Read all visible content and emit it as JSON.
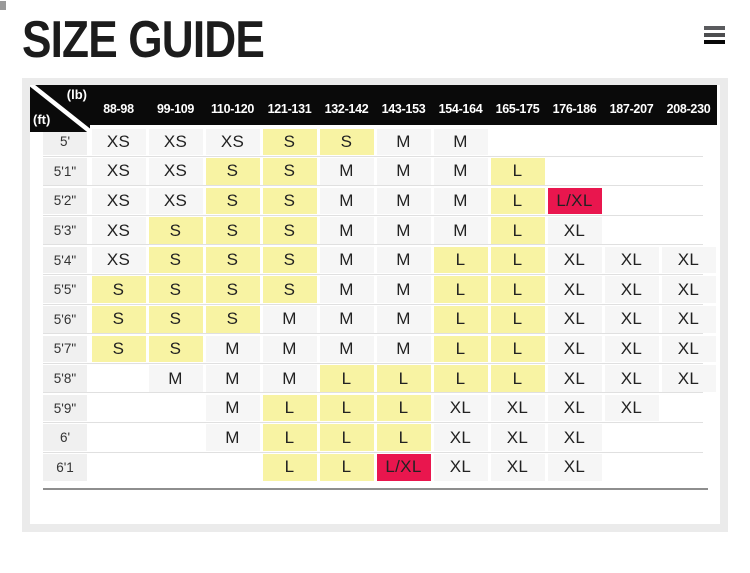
{
  "header": {
    "title": "SIZE GUIDE"
  },
  "menu": {
    "icon": "hamburger-menu-icon"
  },
  "colors": {
    "highlight_yellow": "#f8f3a3",
    "highlight_red": "#e9164e",
    "header_bg": "#0a0a0a",
    "cell_gray": "#f6f6f6",
    "label_gray": "#f0f0f0",
    "panel_frame_gray": "#ebebeb"
  },
  "size_table": {
    "corner": {
      "col_unit": "(lb)",
      "row_unit": "(ft)"
    },
    "columns": [
      "88-98",
      "99-109",
      "110-120",
      "121-131",
      "132-142",
      "143-153",
      "154-164",
      "165-175",
      "176-186",
      "187-207",
      "208-230"
    ],
    "rows": [
      {
        "label": "5'",
        "cells": [
          {
            "v": "XS"
          },
          {
            "v": "XS"
          },
          {
            "v": "XS"
          },
          {
            "v": "S",
            "h": "y"
          },
          {
            "v": "S",
            "h": "y"
          },
          {
            "v": "M"
          },
          {
            "v": "M"
          },
          {
            "v": ""
          },
          {
            "v": ""
          },
          {
            "v": ""
          },
          {
            "v": ""
          }
        ]
      },
      {
        "label": "5'1\"",
        "cells": [
          {
            "v": "XS"
          },
          {
            "v": "XS"
          },
          {
            "v": "S",
            "h": "y"
          },
          {
            "v": "S",
            "h": "y"
          },
          {
            "v": "M"
          },
          {
            "v": "M"
          },
          {
            "v": "M"
          },
          {
            "v": "L",
            "h": "y"
          },
          {
            "v": ""
          },
          {
            "v": ""
          },
          {
            "v": ""
          }
        ]
      },
      {
        "label": "5'2\"",
        "cells": [
          {
            "v": "XS"
          },
          {
            "v": "XS"
          },
          {
            "v": "S",
            "h": "y"
          },
          {
            "v": "S",
            "h": "y"
          },
          {
            "v": "M"
          },
          {
            "v": "M"
          },
          {
            "v": "M"
          },
          {
            "v": "L",
            "h": "y"
          },
          {
            "v": "L/XL",
            "h": "r"
          },
          {
            "v": ""
          },
          {
            "v": ""
          }
        ]
      },
      {
        "label": "5'3\"",
        "cells": [
          {
            "v": "XS"
          },
          {
            "v": "S",
            "h": "y"
          },
          {
            "v": "S",
            "h": "y"
          },
          {
            "v": "S",
            "h": "y"
          },
          {
            "v": "M"
          },
          {
            "v": "M"
          },
          {
            "v": "M"
          },
          {
            "v": "L",
            "h": "y"
          },
          {
            "v": "XL"
          },
          {
            "v": ""
          },
          {
            "v": ""
          }
        ]
      },
      {
        "label": "5'4\"",
        "cells": [
          {
            "v": "XS"
          },
          {
            "v": "S",
            "h": "y"
          },
          {
            "v": "S",
            "h": "y"
          },
          {
            "v": "S",
            "h": "y"
          },
          {
            "v": "M"
          },
          {
            "v": "M"
          },
          {
            "v": "L",
            "h": "y"
          },
          {
            "v": "L",
            "h": "y"
          },
          {
            "v": "XL"
          },
          {
            "v": "XL"
          },
          {
            "v": "XL"
          }
        ]
      },
      {
        "label": "5'5\"",
        "cells": [
          {
            "v": "S",
            "h": "y"
          },
          {
            "v": "S",
            "h": "y"
          },
          {
            "v": "S",
            "h": "y"
          },
          {
            "v": "S",
            "h": "y"
          },
          {
            "v": "M"
          },
          {
            "v": "M"
          },
          {
            "v": "L",
            "h": "y"
          },
          {
            "v": "L",
            "h": "y"
          },
          {
            "v": "XL"
          },
          {
            "v": "XL"
          },
          {
            "v": "XL"
          }
        ]
      },
      {
        "label": "5'6\"",
        "cells": [
          {
            "v": "S",
            "h": "y"
          },
          {
            "v": "S",
            "h": "y"
          },
          {
            "v": "S",
            "h": "y"
          },
          {
            "v": "M"
          },
          {
            "v": "M"
          },
          {
            "v": "M"
          },
          {
            "v": "L",
            "h": "y"
          },
          {
            "v": "L",
            "h": "y"
          },
          {
            "v": "XL"
          },
          {
            "v": "XL"
          },
          {
            "v": "XL"
          }
        ]
      },
      {
        "label": "5'7\"",
        "cells": [
          {
            "v": "S",
            "h": "y"
          },
          {
            "v": "S",
            "h": "y"
          },
          {
            "v": "M"
          },
          {
            "v": "M"
          },
          {
            "v": "M"
          },
          {
            "v": "M"
          },
          {
            "v": "L",
            "h": "y"
          },
          {
            "v": "L",
            "h": "y"
          },
          {
            "v": "XL"
          },
          {
            "v": "XL"
          },
          {
            "v": "XL"
          }
        ]
      },
      {
        "label": "5'8\"",
        "cells": [
          {
            "v": ""
          },
          {
            "v": "M"
          },
          {
            "v": "M"
          },
          {
            "v": "M"
          },
          {
            "v": "L",
            "h": "y"
          },
          {
            "v": "L",
            "h": "y"
          },
          {
            "v": "L",
            "h": "y"
          },
          {
            "v": "L",
            "h": "y"
          },
          {
            "v": "XL"
          },
          {
            "v": "XL"
          },
          {
            "v": "XL"
          }
        ]
      },
      {
        "label": "5'9\"",
        "cells": [
          {
            "v": ""
          },
          {
            "v": ""
          },
          {
            "v": "M"
          },
          {
            "v": "L",
            "h": "y"
          },
          {
            "v": "L",
            "h": "y"
          },
          {
            "v": "L",
            "h": "y"
          },
          {
            "v": "XL"
          },
          {
            "v": "XL"
          },
          {
            "v": "XL"
          },
          {
            "v": "XL"
          },
          {
            "v": ""
          }
        ]
      },
      {
        "label": "6'",
        "cells": [
          {
            "v": ""
          },
          {
            "v": ""
          },
          {
            "v": "M"
          },
          {
            "v": "L",
            "h": "y"
          },
          {
            "v": "L",
            "h": "y"
          },
          {
            "v": "L",
            "h": "y"
          },
          {
            "v": "XL"
          },
          {
            "v": "XL"
          },
          {
            "v": "XL"
          },
          {
            "v": ""
          },
          {
            "v": ""
          }
        ]
      },
      {
        "label": "6'1",
        "cells": [
          {
            "v": ""
          },
          {
            "v": ""
          },
          {
            "v": ""
          },
          {
            "v": "L",
            "h": "y"
          },
          {
            "v": "L",
            "h": "y"
          },
          {
            "v": "L/XL",
            "h": "r"
          },
          {
            "v": "XL"
          },
          {
            "v": "XL"
          },
          {
            "v": "XL"
          },
          {
            "v": ""
          },
          {
            "v": ""
          }
        ]
      }
    ]
  }
}
